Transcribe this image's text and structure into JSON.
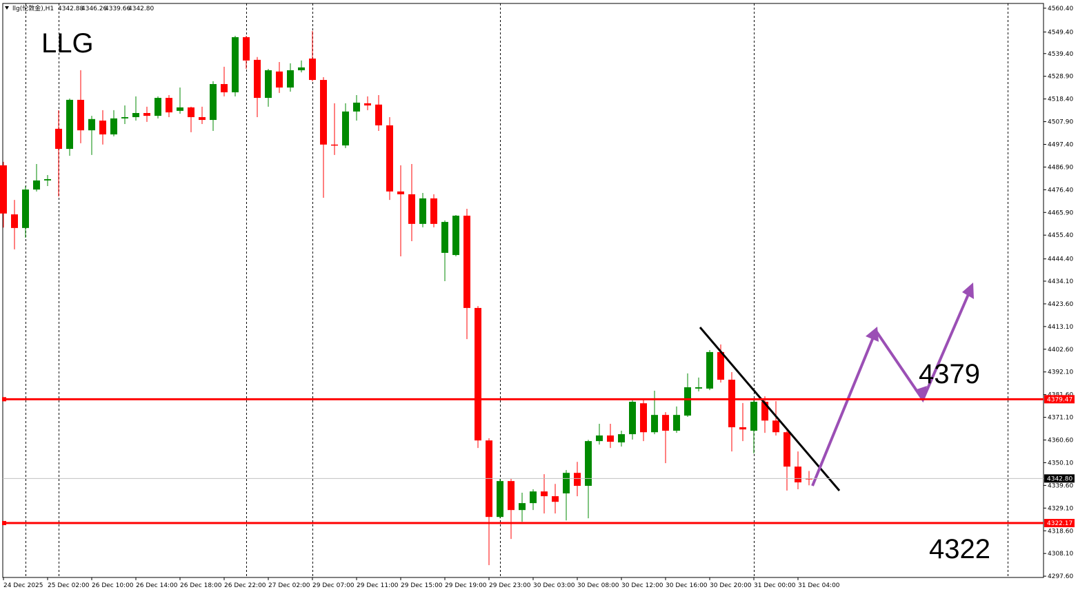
{
  "chart_data": {
    "type": "candlestick",
    "header": {
      "symbol": "llg(伦敦金),H1",
      "ohlc": [
        "4342.88",
        "4346.26",
        "4339.66",
        "4342.80"
      ]
    },
    "annotations": [
      {
        "text": "LLG"
      },
      {
        "text": "4379"
      },
      {
        "text": "4322"
      }
    ],
    "categories": [
      "24 Dec 2025",
      null,
      null,
      null,
      "25 Dec 02:00",
      null,
      null,
      null,
      "26 Dec 10:00",
      null,
      null,
      null,
      "26 Dec 14:00",
      null,
      null,
      null,
      "26 Dec 18:00",
      null,
      null,
      null,
      "26 Dec 22:00",
      null,
      null,
      null,
      "27 Dec 02:00",
      null,
      null,
      null,
      "29 Dec 07:00",
      null,
      null,
      null,
      "29 Dec 11:00",
      null,
      null,
      null,
      "29 Dec 15:00",
      null,
      null,
      null,
      "29 Dec 19:00",
      null,
      null,
      null,
      "29 Dec 23:00",
      null,
      null,
      null,
      "30 Dec 03:00",
      null,
      null,
      null,
      "30 Dec 08:00",
      null,
      null,
      null,
      "30 Dec 12:00",
      null,
      null,
      null,
      "30 Dec 16:00",
      null,
      null,
      null,
      "30 Dec 20:00",
      null,
      null,
      null,
      "31 Dec 00:00",
      null,
      null,
      null,
      "31 Dec 04:00",
      null
    ],
    "open": [
      4487.7,
      4465.0,
      4458.7,
      4476.5,
      4480.7,
      4504.6,
      4495.3,
      4518.0,
      4503.9,
      4508.4,
      4502.0,
      4509.4,
      4510.0,
      4511.9,
      4510.6,
      4518.9,
      4512.9,
      4514.5,
      4510.0,
      4508.7,
      4525.3,
      4521.5,
      4547.0,
      4536.5,
      4518.9,
      4531.1,
      4523.7,
      4531.7,
      4537.1,
      4527.2,
      4497.3,
      4496.9,
      4512.6,
      4516.4,
      4515.8,
      4506.2,
      4475.6,
      4474.3,
      4460.6,
      4472.4,
      4447.2,
      4446.2,
      4464.4,
      4421.7,
      4360.4,
      4325.0,
      4341.6,
      4328.2,
      4331.4,
      4336.8,
      4334.6,
      4335.9,
      4345.4,
      4339.4,
      4360.1,
      4362.7,
      4359.5,
      4363.3,
      4377.6,
      4364.2,
      4372.2,
      4364.9,
      4371.9,
      4384.4,
      4384.4,
      4401.3,
      4388.5,
      4366.5,
      4364.9,
      4378.3,
      4369.6,
      4364.2,
      4348.3,
      4342.88
    ],
    "high": [
      4489.3,
      4471.7,
      4478.1,
      4488.3,
      4483.2,
      4513.2,
      4518.6,
      4531.7,
      4510.6,
      4513.2,
      4513.2,
      4515.4,
      4519.6,
      4514.8,
      4519.6,
      4520.2,
      4523.7,
      4514.8,
      4514.8,
      4526.6,
      4533.3,
      4547.6,
      4547.6,
      4537.8,
      4532.3,
      4535.5,
      4534.9,
      4536.2,
      4549.9,
      4528.5,
      4516.4,
      4516.4,
      4520.2,
      4519.6,
      4520.2,
      4510.0,
      4487.7,
      4488.3,
      4474.9,
      4474.3,
      4462.2,
      4464.7,
      4467.6,
      4422.6,
      4361.4,
      4342.6,
      4342.6,
      4336.2,
      4337.8,
      4344.8,
      4340.3,
      4346.7,
      4350.5,
      4360.7,
      4368.1,
      4368.1,
      4364.9,
      4379.2,
      4379.2,
      4383.4,
      4373.5,
      4376.1,
      4391.4,
      4389.5,
      4402.2,
      4404.8,
      4392.0,
      4377.7,
      4379.2,
      4380.8,
      4378.6,
      4364.9,
      4355.3,
      4346.26
    ],
    "low": [
      4458.9,
      4448.8,
      4454.2,
      4475.6,
      4478.1,
      4473.3,
      4492.1,
      4497.9,
      4492.5,
      4497.3,
      4501.1,
      4506.8,
      4508.4,
      4507.8,
      4509.4,
      4510.0,
      4511.6,
      4503.0,
      4506.8,
      4503.6,
      4519.6,
      4519.6,
      4532.3,
      4510.0,
      4514.8,
      4521.2,
      4521.8,
      4530.7,
      4526.6,
      4472.7,
      4492.5,
      4495.7,
      4508.4,
      4513.2,
      4503.6,
      4471.7,
      4445.6,
      4452.6,
      4459.0,
      4459.0,
      4434.1,
      4445.6,
      4407.3,
      4356.9,
      4302.7,
      4324.4,
      4314.8,
      4322.8,
      4328.2,
      4326.6,
      4326.6,
      4323.4,
      4334.6,
      4324.4,
      4358.5,
      4356.9,
      4357.6,
      4360.8,
      4360.1,
      4363.3,
      4349.9,
      4363.9,
      4371.3,
      4383.1,
      4383.7,
      4387.2,
      4355.3,
      4360.1,
      4354.4,
      4363.9,
      4362.7,
      4337.2,
      4337.8,
      4339.66
    ],
    "close": [
      4465.4,
      4458.7,
      4476.5,
      4480.7,
      4481.3,
      4495.3,
      4518.0,
      4503.9,
      4509.1,
      4502.0,
      4509.4,
      4510.0,
      4511.9,
      4510.6,
      4518.9,
      4512.2,
      4514.5,
      4510.0,
      4508.7,
      4525.3,
      4521.5,
      4547.0,
      4536.2,
      4518.9,
      4531.7,
      4523.7,
      4531.7,
      4533.0,
      4527.2,
      4497.3,
      4496.9,
      4512.6,
      4516.7,
      4515.4,
      4506.2,
      4475.6,
      4474.3,
      4460.6,
      4472.4,
      4460.6,
      4461.5,
      4464.4,
      4421.7,
      4360.4,
      4325.0,
      4341.6,
      4328.2,
      4331.4,
      4336.8,
      4334.6,
      4332.0,
      4345.4,
      4339.4,
      4360.1,
      4362.7,
      4359.8,
      4363.3,
      4378.3,
      4364.2,
      4372.2,
      4364.9,
      4372.2,
      4385.0,
      4385.0,
      4401.3,
      4388.5,
      4366.5,
      4365.5,
      4378.3,
      4369.6,
      4364.2,
      4348.3,
      4341.0,
      4342.8
    ],
    "up_color": "#008a00",
    "down_color": "#ff0000",
    "levels": [
      {
        "value": 4379.47,
        "color": "#ff0000"
      },
      {
        "value": 4322.17,
        "color": "#ff0000"
      }
    ],
    "last_price": {
      "value": 4342.8,
      "label": "4342.80"
    },
    "ylim": [
      4297.0,
      4562.6
    ],
    "yticks": [
      {
        "value": 4560.4,
        "label": "4560.40"
      },
      {
        "value": 4549.4,
        "label": "4549.40"
      },
      {
        "value": 4539.4,
        "label": "4539.40"
      },
      {
        "value": 4528.9,
        "label": "4528.90"
      },
      {
        "value": 4518.4,
        "label": "4518.40"
      },
      {
        "value": 4507.9,
        "label": "4507.90"
      },
      {
        "value": 4497.4,
        "label": "4497.40"
      },
      {
        "value": 4486.9,
        "label": "4486.90"
      },
      {
        "value": 4476.4,
        "label": "4476.40"
      },
      {
        "value": 4465.9,
        "label": "4465.90"
      },
      {
        "value": 4455.4,
        "label": "4455.40"
      },
      {
        "value": 4444.4,
        "label": "4444.40"
      },
      {
        "value": 4434.1,
        "label": "4434.10"
      },
      {
        "value": 4423.6,
        "label": "4423.60"
      },
      {
        "value": 4413.1,
        "label": "4413.10"
      },
      {
        "value": 4402.6,
        "label": "4402.60"
      },
      {
        "value": 4392.1,
        "label": "4392.10"
      },
      {
        "value": 4381.6,
        "label": "4381.60"
      },
      {
        "value": 4371.1,
        "label": "4371.10"
      },
      {
        "value": 4360.6,
        "label": "4360.60"
      },
      {
        "value": 4350.1,
        "label": "4350.10"
      },
      {
        "value": 4339.6,
        "label": "4339.60"
      },
      {
        "value": 4329.1,
        "label": "4329.10"
      },
      {
        "value": 4318.6,
        "label": "4318.60"
      },
      {
        "value": 4308.1,
        "label": "4308.10"
      },
      {
        "value": 4297.6,
        "label": "4297.60"
      }
    ]
  }
}
